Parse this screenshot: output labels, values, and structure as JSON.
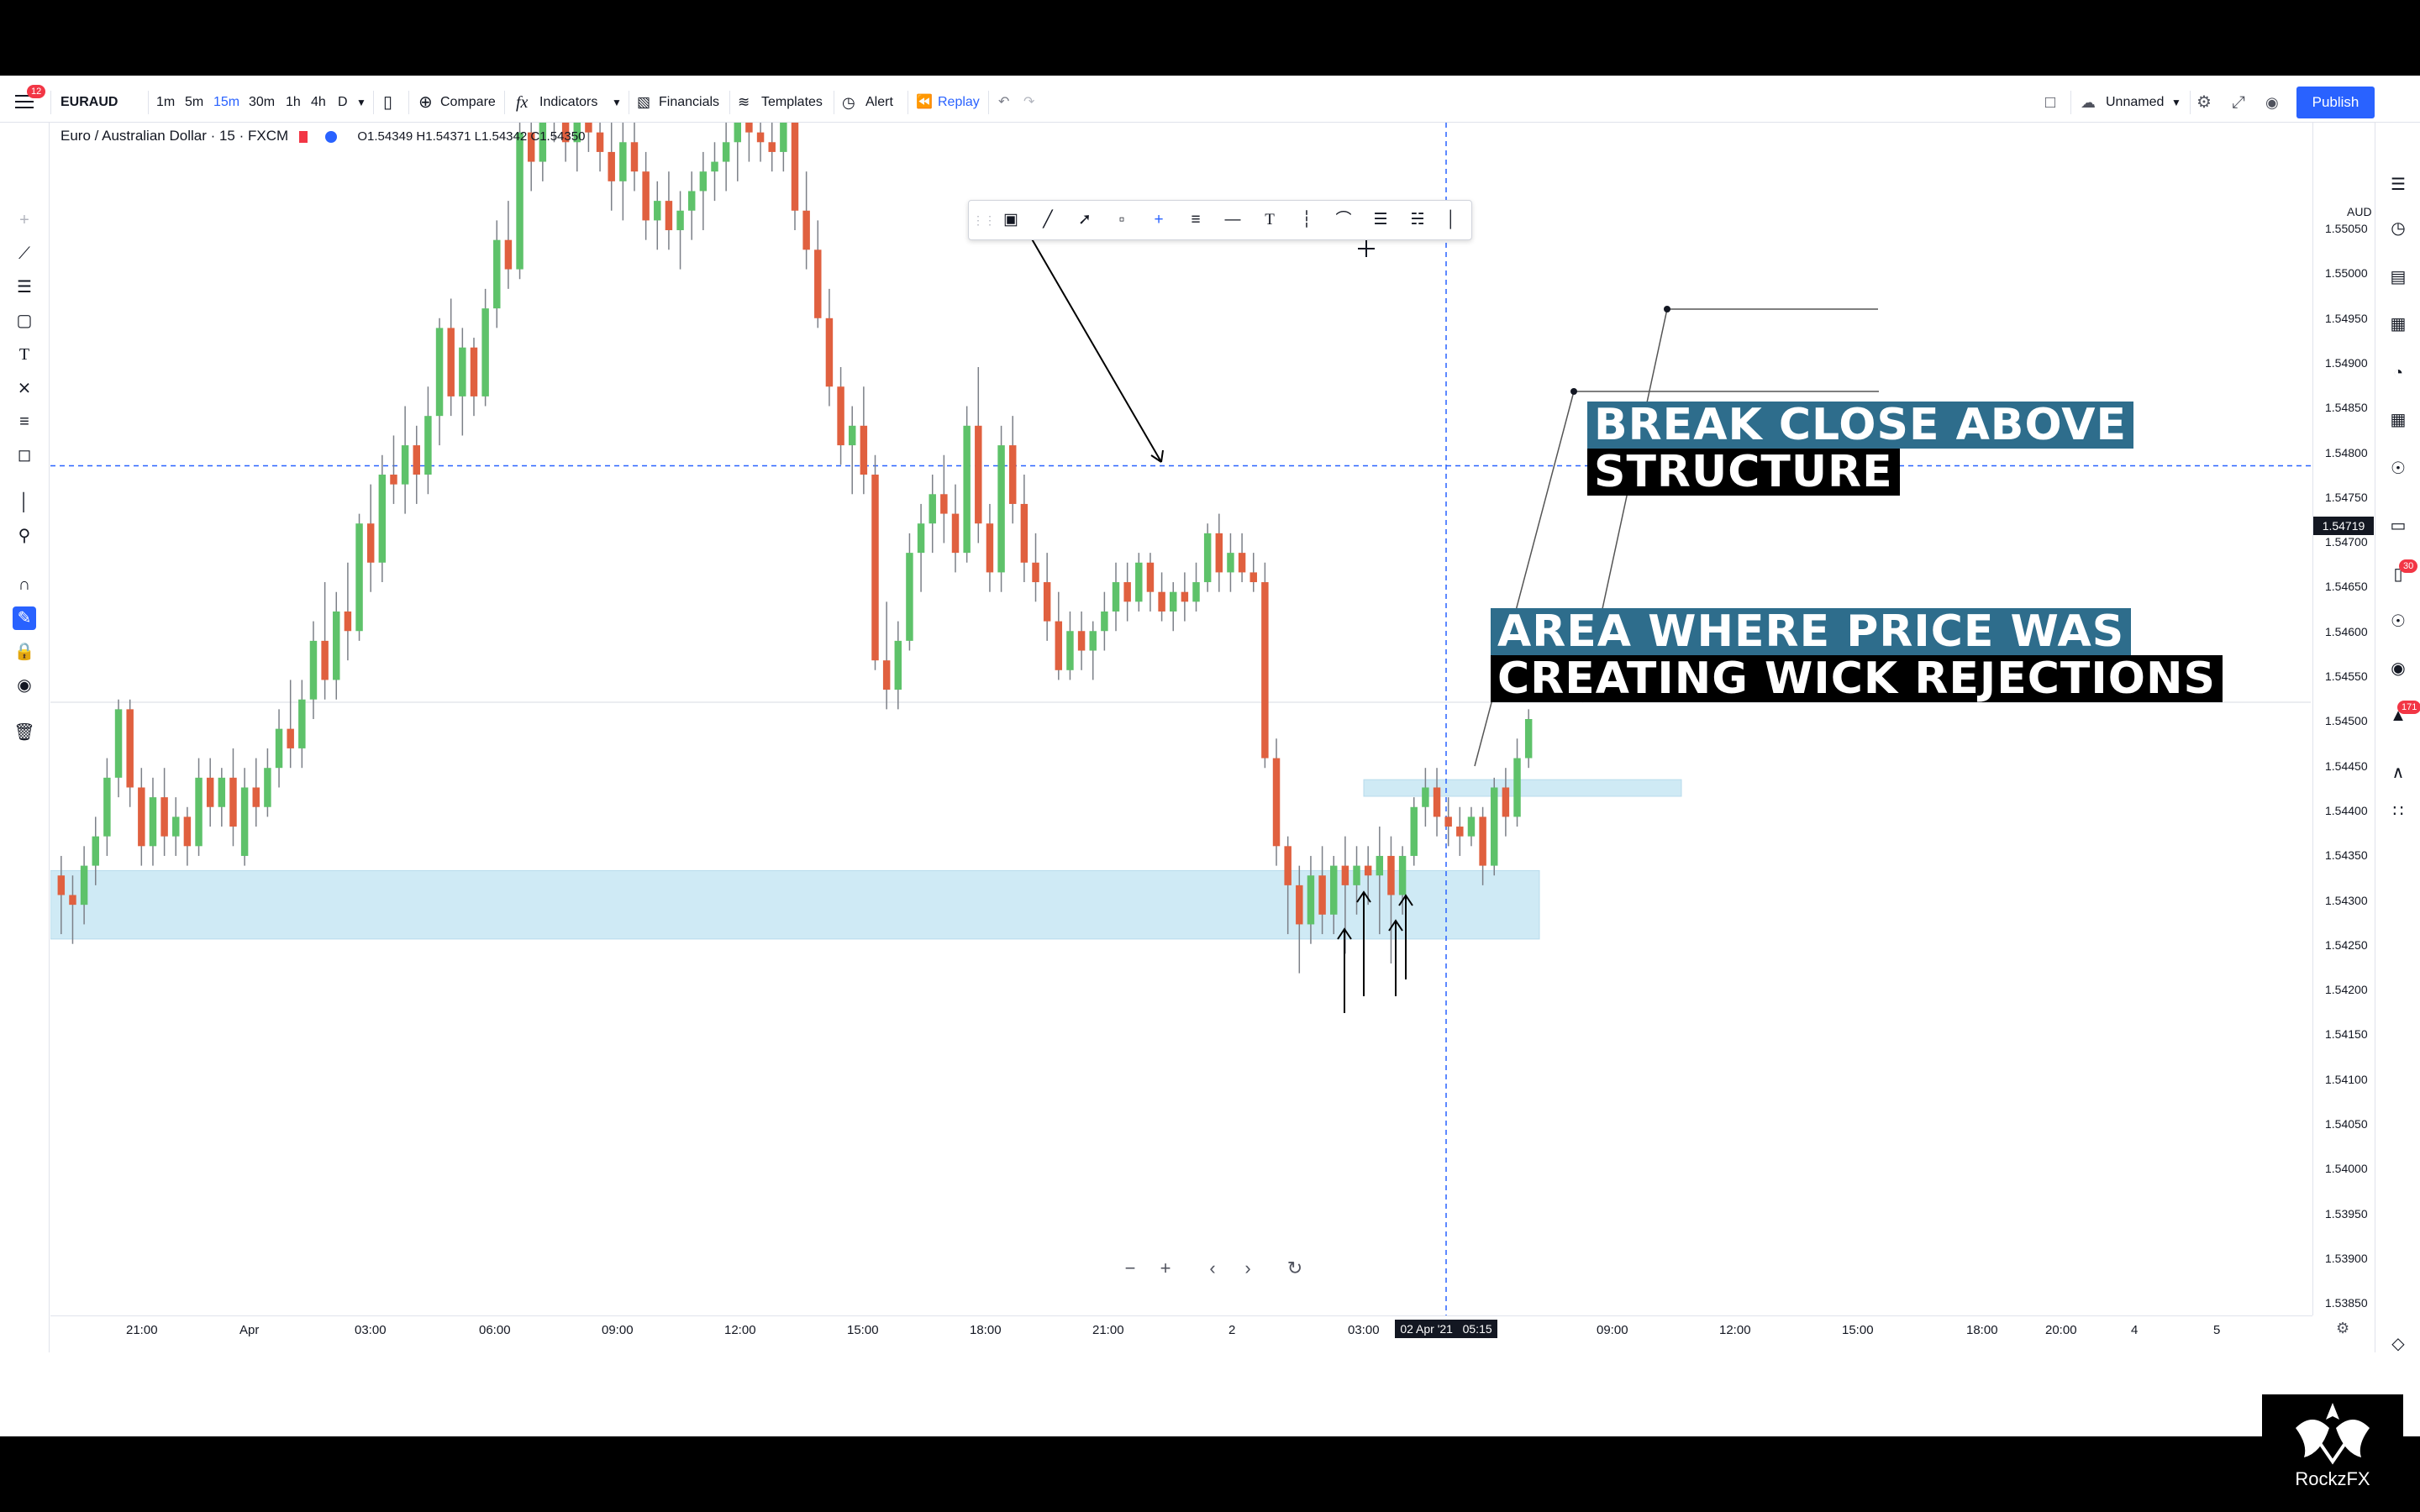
{
  "header": {
    "notification_count": "12",
    "symbol": "EURAUD",
    "intervals": [
      "1m",
      "5m",
      "15m",
      "30m",
      "1h",
      "4h",
      "D"
    ],
    "active_interval": "15m",
    "compare_label": "Compare",
    "indicators_label": "Indicators",
    "financials_label": "Financials",
    "templates_label": "Templates",
    "alert_label": "Alert",
    "replay_label": "Replay",
    "layout_name": "Unnamed",
    "publish_label": "Publish"
  },
  "legend": {
    "title": "Euro / Australian Dollar · 15 · FXCM",
    "ohlc": "O1.54349 H1.54371 L1.54342 C1.54350"
  },
  "price_axis": {
    "currency": "AUD",
    "ticks": [
      "1.55050",
      "1.55000",
      "1.54950",
      "1.54900",
      "1.54850",
      "1.54800",
      "1.54750",
      "1.54700",
      "1.54650",
      "1.54600",
      "1.54550",
      "1.54500",
      "1.54450",
      "1.54400",
      "1.54350",
      "1.54300",
      "1.54250",
      "1.54200",
      "1.54150",
      "1.54100",
      "1.54050",
      "1.54000",
      "1.53950",
      "1.53900",
      "1.53850"
    ],
    "current_price": "1.54719"
  },
  "time_axis": {
    "ticks": [
      "21:00",
      "Apr",
      "03:00",
      "06:00",
      "09:00",
      "12:00",
      "15:00",
      "18:00",
      "21:00",
      "2",
      "03:00",
      "09:00",
      "12:00",
      "15:00",
      "18:00",
      "20:00",
      "4",
      "5"
    ],
    "crosshair_label": "02 Apr '21   05:15"
  },
  "annotations": {
    "break_line1": "BREAK CLOSE ABOVE",
    "break_line2": "STRUCTURE",
    "area_line1": "AREA WHERE PRICE WAS",
    "area_line2": "CREATING WICK REJECTIONS"
  },
  "sidebar_badges": {
    "chat_count": "30",
    "notif_count": "171"
  },
  "watermark": "RockzFX",
  "colors": {
    "bull": "#5ec26a",
    "bear": "#e0603f",
    "zone": "#bfe3f2",
    "accent": "#2962ff",
    "annot_teal": "#2e6d8c"
  },
  "chart_data": {
    "type": "candlestick",
    "symbol": "EURAUD",
    "timeframe": "15",
    "ylim": [
      1.5385,
      1.5507
    ],
    "candles": [
      [
        1.543,
        1.5432,
        1.5424,
        1.5428
      ],
      [
        1.5428,
        1.543,
        1.5423,
        1.5427
      ],
      [
        1.5427,
        1.5433,
        1.5425,
        1.5431
      ],
      [
        1.5431,
        1.5436,
        1.5429,
        1.5434
      ],
      [
        1.5434,
        1.5442,
        1.5432,
        1.544
      ],
      [
        1.544,
        1.5448,
        1.5438,
        1.5447
      ],
      [
        1.5447,
        1.5448,
        1.5437,
        1.5439
      ],
      [
        1.5439,
        1.5441,
        1.5431,
        1.5433
      ],
      [
        1.5433,
        1.544,
        1.5431,
        1.5438
      ],
      [
        1.5438,
        1.5441,
        1.5432,
        1.5434
      ],
      [
        1.5434,
        1.5438,
        1.5432,
        1.5436
      ],
      [
        1.5436,
        1.5437,
        1.5431,
        1.5433
      ],
      [
        1.5433,
        1.5442,
        1.5432,
        1.544
      ],
      [
        1.544,
        1.5442,
        1.5435,
        1.5437
      ],
      [
        1.5437,
        1.5441,
        1.5435,
        1.544
      ],
      [
        1.544,
        1.5443,
        1.5433,
        1.5435
      ],
      [
        1.5432,
        1.5441,
        1.5431,
        1.5439
      ],
      [
        1.5439,
        1.5442,
        1.5435,
        1.5437
      ],
      [
        1.5437,
        1.5443,
        1.5436,
        1.5441
      ],
      [
        1.5441,
        1.5447,
        1.5439,
        1.5445
      ],
      [
        1.5445,
        1.545,
        1.5441,
        1.5443
      ],
      [
        1.5443,
        1.545,
        1.5441,
        1.5448
      ],
      [
        1.5448,
        1.5456,
        1.5446,
        1.5454
      ],
      [
        1.5454,
        1.546,
        1.5448,
        1.545
      ],
      [
        1.545,
        1.5459,
        1.5448,
        1.5457
      ],
      [
        1.5457,
        1.5462,
        1.5452,
        1.5455
      ],
      [
        1.5455,
        1.5467,
        1.5454,
        1.5466
      ],
      [
        1.5466,
        1.547,
        1.5459,
        1.5462
      ],
      [
        1.5462,
        1.5473,
        1.546,
        1.5471
      ],
      [
        1.5471,
        1.5475,
        1.5468,
        1.547
      ],
      [
        1.547,
        1.5478,
        1.5467,
        1.5474
      ],
      [
        1.5474,
        1.5476,
        1.5468,
        1.5471
      ],
      [
        1.5471,
        1.548,
        1.5469,
        1.5477
      ],
      [
        1.5477,
        1.5487,
        1.5474,
        1.5486
      ],
      [
        1.5486,
        1.5489,
        1.5477,
        1.5479
      ],
      [
        1.5479,
        1.5486,
        1.5475,
        1.5484
      ],
      [
        1.5484,
        1.5485,
        1.5477,
        1.5479
      ],
      [
        1.5479,
        1.549,
        1.5478,
        1.5488
      ],
      [
        1.5488,
        1.5497,
        1.5486,
        1.5495
      ],
      [
        1.5495,
        1.5499,
        1.549,
        1.5492
      ],
      [
        1.5492,
        1.5508,
        1.5491,
        1.5506
      ],
      [
        1.5506,
        1.551,
        1.55,
        1.5503
      ],
      [
        1.5503,
        1.5512,
        1.5501,
        1.5509
      ],
      [
        1.5509,
        1.5512,
        1.5505,
        1.5507
      ],
      [
        1.5507,
        1.5511,
        1.5503,
        1.5505
      ],
      [
        1.5505,
        1.5509,
        1.5502,
        1.5508
      ],
      [
        1.5508,
        1.5512,
        1.5504,
        1.5506
      ],
      [
        1.5506,
        1.5511,
        1.5502,
        1.5504
      ],
      [
        1.5504,
        1.5509,
        1.5498,
        1.5501
      ],
      [
        1.5501,
        1.5507,
        1.5497,
        1.5505
      ],
      [
        1.5505,
        1.5508,
        1.55,
        1.5502
      ],
      [
        1.5502,
        1.5504,
        1.5495,
        1.5497
      ],
      [
        1.5497,
        1.5501,
        1.5494,
        1.5499
      ],
      [
        1.5499,
        1.5502,
        1.5494,
        1.5496
      ],
      [
        1.5496,
        1.55,
        1.5492,
        1.5498
      ],
      [
        1.5498,
        1.5502,
        1.5495,
        1.55
      ],
      [
        1.55,
        1.5504,
        1.5496,
        1.5502
      ],
      [
        1.5502,
        1.5505,
        1.5499,
        1.5503
      ],
      [
        1.5503,
        1.5507,
        1.55,
        1.5505
      ],
      [
        1.5505,
        1.5508,
        1.5501,
        1.5507
      ],
      [
        1.5507,
        1.5509,
        1.5503,
        1.5506
      ],
      [
        1.5506,
        1.5508,
        1.5503,
        1.5505
      ],
      [
        1.5505,
        1.5507,
        1.5502,
        1.5504
      ],
      [
        1.5504,
        1.5509,
        1.5502,
        1.5508
      ],
      [
        1.5508,
        1.551,
        1.5496,
        1.5498
      ],
      [
        1.5498,
        1.5502,
        1.5492,
        1.5494
      ],
      [
        1.5494,
        1.5497,
        1.5486,
        1.5487
      ],
      [
        1.5487,
        1.549,
        1.5478,
        1.548
      ],
      [
        1.548,
        1.5482,
        1.5472,
        1.5474
      ],
      [
        1.5474,
        1.5478,
        1.5469,
        1.5476
      ],
      [
        1.5476,
        1.548,
        1.5469,
        1.5471
      ],
      [
        1.5471,
        1.5473,
        1.5451,
        1.5452
      ],
      [
        1.5452,
        1.5458,
        1.5447,
        1.5449
      ],
      [
        1.5449,
        1.5456,
        1.5447,
        1.5454
      ],
      [
        1.5454,
        1.5465,
        1.5453,
        1.5463
      ],
      [
        1.5463,
        1.5468,
        1.5459,
        1.5466
      ],
      [
        1.5466,
        1.5471,
        1.5463,
        1.5469
      ],
      [
        1.5469,
        1.5473,
        1.5464,
        1.5467
      ],
      [
        1.5467,
        1.547,
        1.5461,
        1.5463
      ],
      [
        1.5463,
        1.5478,
        1.5462,
        1.5476
      ],
      [
        1.5476,
        1.5482,
        1.5464,
        1.5466
      ],
      [
        1.5466,
        1.5468,
        1.5459,
        1.5461
      ],
      [
        1.5461,
        1.5476,
        1.5459,
        1.5474
      ],
      [
        1.5474,
        1.5477,
        1.5466,
        1.5468
      ],
      [
        1.5468,
        1.5471,
        1.546,
        1.5462
      ],
      [
        1.5462,
        1.5465,
        1.5458,
        1.546
      ],
      [
        1.546,
        1.5463,
        1.5454,
        1.5456
      ],
      [
        1.5456,
        1.5459,
        1.545,
        1.5451
      ],
      [
        1.5451,
        1.5457,
        1.545,
        1.5455
      ],
      [
        1.5455,
        1.5457,
        1.5451,
        1.5453
      ],
      [
        1.5453,
        1.5456,
        1.545,
        1.5455
      ],
      [
        1.5455,
        1.5459,
        1.5453,
        1.5457
      ],
      [
        1.5457,
        1.5462,
        1.5455,
        1.546
      ],
      [
        1.546,
        1.5462,
        1.5456,
        1.5458
      ],
      [
        1.5458,
        1.5463,
        1.5457,
        1.5462
      ],
      [
        1.5462,
        1.5463,
        1.5457,
        1.5459
      ],
      [
        1.5459,
        1.5461,
        1.5456,
        1.5457
      ],
      [
        1.5457,
        1.546,
        1.5455,
        1.5459
      ],
      [
        1.5459,
        1.5461,
        1.5456,
        1.5458
      ],
      [
        1.5458,
        1.5462,
        1.5457,
        1.546
      ],
      [
        1.546,
        1.5466,
        1.5459,
        1.5465
      ],
      [
        1.5465,
        1.5467,
        1.5459,
        1.5461
      ],
      [
        1.5461,
        1.5465,
        1.5459,
        1.5463
      ],
      [
        1.5463,
        1.5465,
        1.546,
        1.5461
      ],
      [
        1.5461,
        1.5463,
        1.5459,
        1.546
      ],
      [
        1.546,
        1.5462,
        1.5441,
        1.5442
      ],
      [
        1.5442,
        1.5444,
        1.5431,
        1.5433
      ],
      [
        1.5433,
        1.5434,
        1.5424,
        1.5429
      ],
      [
        1.5429,
        1.5431,
        1.542,
        1.5425
      ],
      [
        1.5425,
        1.5432,
        1.5423,
        1.543
      ],
      [
        1.543,
        1.5433,
        1.5424,
        1.5426
      ],
      [
        1.5426,
        1.5432,
        1.5424,
        1.5431
      ],
      [
        1.5431,
        1.5434,
        1.5422,
        1.5429
      ],
      [
        1.5429,
        1.5433,
        1.5426,
        1.5431
      ],
      [
        1.5431,
        1.5433,
        1.5427,
        1.543
      ],
      [
        1.543,
        1.5435,
        1.5424,
        1.5432
      ],
      [
        1.5432,
        1.5434,
        1.5421,
        1.5428
      ],
      [
        1.5428,
        1.5433,
        1.5426,
        1.5432
      ],
      [
        1.5432,
        1.5438,
        1.5431,
        1.5437
      ],
      [
        1.5437,
        1.5441,
        1.5435,
        1.5439
      ],
      [
        1.5439,
        1.5441,
        1.5434,
        1.5436
      ],
      [
        1.5436,
        1.5438,
        1.5433,
        1.5435
      ],
      [
        1.5435,
        1.5437,
        1.5432,
        1.5434
      ],
      [
        1.5434,
        1.5437,
        1.5433,
        1.5436
      ],
      [
        1.5436,
        1.5437,
        1.5429,
        1.5431
      ],
      [
        1.5431,
        1.544,
        1.543,
        1.5439
      ],
      [
        1.5439,
        1.5441,
        1.5434,
        1.5436
      ],
      [
        1.5436,
        1.5444,
        1.5435,
        1.5442
      ],
      [
        1.5442,
        1.5447,
        1.5441,
        1.5446
      ]
    ],
    "zones": [
      {
        "from": 1.54235,
        "to": 1.54305
      },
      {
        "from": 1.54381,
        "to": 1.54398
      }
    ],
    "horizontal_lines": [
      1.54719
    ]
  }
}
